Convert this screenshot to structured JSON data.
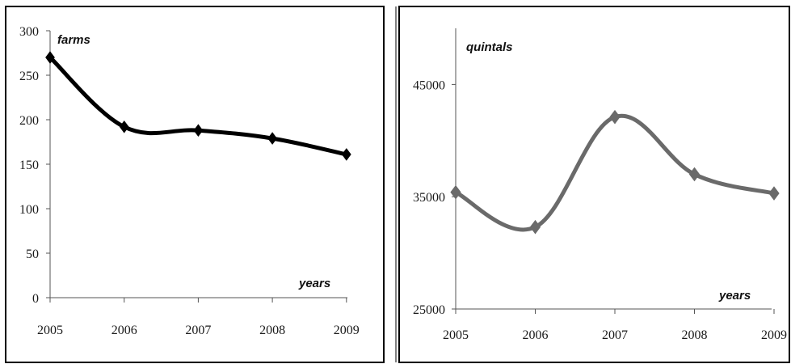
{
  "chart_data": [
    {
      "type": "line",
      "title": "",
      "xlabel": "years",
      "ylabel": "farms",
      "categories": [
        "2005",
        "2006",
        "2007",
        "2008",
        "2009"
      ],
      "yticks": [
        "0",
        "50",
        "100",
        "150",
        "200",
        "250",
        "300"
      ],
      "ylim": [
        0,
        300
      ],
      "grid": false,
      "series": [
        {
          "values": [
            270,
            192,
            188,
            179,
            161
          ],
          "color": "#000000"
        }
      ]
    },
    {
      "type": "line",
      "title": "",
      "xlabel": "years",
      "ylabel": "quintals",
      "categories": [
        "2005",
        "2006",
        "2007",
        "2008",
        "2009"
      ],
      "yticks": [
        "25000",
        "35000",
        "45000"
      ],
      "ylim": [
        25000,
        50000
      ],
      "grid": false,
      "series": [
        {
          "values": [
            35400,
            32300,
            42100,
            37000,
            35300
          ],
          "color": "#6a6a6a"
        }
      ]
    }
  ]
}
